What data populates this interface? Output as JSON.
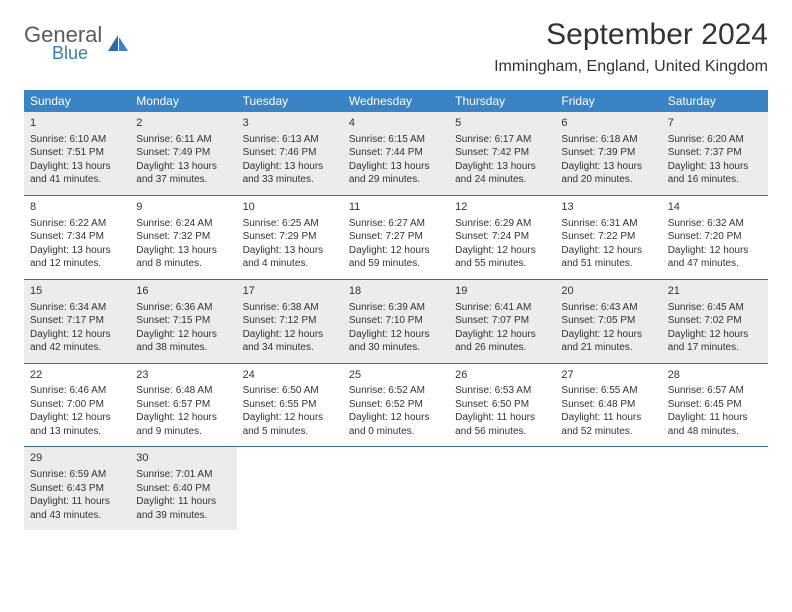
{
  "logo": {
    "general": "General",
    "blue": "Blue"
  },
  "title": "September 2024",
  "location": "Immingham, England, United Kingdom",
  "colors": {
    "header_bg": "#3a83c4",
    "header_text": "#ffffff",
    "border": "#3a6a9a",
    "shade": "#ececec",
    "text": "#333333",
    "logo_gray": "#5a5a5a",
    "logo_blue": "#3a7ab8"
  },
  "weekdays": [
    "Sunday",
    "Monday",
    "Tuesday",
    "Wednesday",
    "Thursday",
    "Friday",
    "Saturday"
  ],
  "weeks": [
    {
      "shaded": true,
      "days": [
        {
          "num": "1",
          "sunrise": "6:10 AM",
          "sunset": "7:51 PM",
          "daylight": "13 hours and 41 minutes."
        },
        {
          "num": "2",
          "sunrise": "6:11 AM",
          "sunset": "7:49 PM",
          "daylight": "13 hours and 37 minutes."
        },
        {
          "num": "3",
          "sunrise": "6:13 AM",
          "sunset": "7:46 PM",
          "daylight": "13 hours and 33 minutes."
        },
        {
          "num": "4",
          "sunrise": "6:15 AM",
          "sunset": "7:44 PM",
          "daylight": "13 hours and 29 minutes."
        },
        {
          "num": "5",
          "sunrise": "6:17 AM",
          "sunset": "7:42 PM",
          "daylight": "13 hours and 24 minutes."
        },
        {
          "num": "6",
          "sunrise": "6:18 AM",
          "sunset": "7:39 PM",
          "daylight": "13 hours and 20 minutes."
        },
        {
          "num": "7",
          "sunrise": "6:20 AM",
          "sunset": "7:37 PM",
          "daylight": "13 hours and 16 minutes."
        }
      ]
    },
    {
      "shaded": false,
      "days": [
        {
          "num": "8",
          "sunrise": "6:22 AM",
          "sunset": "7:34 PM",
          "daylight": "13 hours and 12 minutes."
        },
        {
          "num": "9",
          "sunrise": "6:24 AM",
          "sunset": "7:32 PM",
          "daylight": "13 hours and 8 minutes."
        },
        {
          "num": "10",
          "sunrise": "6:25 AM",
          "sunset": "7:29 PM",
          "daylight": "13 hours and 4 minutes."
        },
        {
          "num": "11",
          "sunrise": "6:27 AM",
          "sunset": "7:27 PM",
          "daylight": "12 hours and 59 minutes."
        },
        {
          "num": "12",
          "sunrise": "6:29 AM",
          "sunset": "7:24 PM",
          "daylight": "12 hours and 55 minutes."
        },
        {
          "num": "13",
          "sunrise": "6:31 AM",
          "sunset": "7:22 PM",
          "daylight": "12 hours and 51 minutes."
        },
        {
          "num": "14",
          "sunrise": "6:32 AM",
          "sunset": "7:20 PM",
          "daylight": "12 hours and 47 minutes."
        }
      ]
    },
    {
      "shaded": true,
      "days": [
        {
          "num": "15",
          "sunrise": "6:34 AM",
          "sunset": "7:17 PM",
          "daylight": "12 hours and 42 minutes."
        },
        {
          "num": "16",
          "sunrise": "6:36 AM",
          "sunset": "7:15 PM",
          "daylight": "12 hours and 38 minutes."
        },
        {
          "num": "17",
          "sunrise": "6:38 AM",
          "sunset": "7:12 PM",
          "daylight": "12 hours and 34 minutes."
        },
        {
          "num": "18",
          "sunrise": "6:39 AM",
          "sunset": "7:10 PM",
          "daylight": "12 hours and 30 minutes."
        },
        {
          "num": "19",
          "sunrise": "6:41 AM",
          "sunset": "7:07 PM",
          "daylight": "12 hours and 26 minutes."
        },
        {
          "num": "20",
          "sunrise": "6:43 AM",
          "sunset": "7:05 PM",
          "daylight": "12 hours and 21 minutes."
        },
        {
          "num": "21",
          "sunrise": "6:45 AM",
          "sunset": "7:02 PM",
          "daylight": "12 hours and 17 minutes."
        }
      ]
    },
    {
      "shaded": false,
      "days": [
        {
          "num": "22",
          "sunrise": "6:46 AM",
          "sunset": "7:00 PM",
          "daylight": "12 hours and 13 minutes."
        },
        {
          "num": "23",
          "sunrise": "6:48 AM",
          "sunset": "6:57 PM",
          "daylight": "12 hours and 9 minutes."
        },
        {
          "num": "24",
          "sunrise": "6:50 AM",
          "sunset": "6:55 PM",
          "daylight": "12 hours and 5 minutes."
        },
        {
          "num": "25",
          "sunrise": "6:52 AM",
          "sunset": "6:52 PM",
          "daylight": "12 hours and 0 minutes."
        },
        {
          "num": "26",
          "sunrise": "6:53 AM",
          "sunset": "6:50 PM",
          "daylight": "11 hours and 56 minutes."
        },
        {
          "num": "27",
          "sunrise": "6:55 AM",
          "sunset": "6:48 PM",
          "daylight": "11 hours and 52 minutes."
        },
        {
          "num": "28",
          "sunrise": "6:57 AM",
          "sunset": "6:45 PM",
          "daylight": "11 hours and 48 minutes."
        }
      ]
    },
    {
      "shaded": true,
      "days": [
        {
          "num": "29",
          "sunrise": "6:59 AM",
          "sunset": "6:43 PM",
          "daylight": "11 hours and 43 minutes."
        },
        {
          "num": "30",
          "sunrise": "7:01 AM",
          "sunset": "6:40 PM",
          "daylight": "11 hours and 39 minutes."
        },
        null,
        null,
        null,
        null,
        null
      ]
    }
  ]
}
